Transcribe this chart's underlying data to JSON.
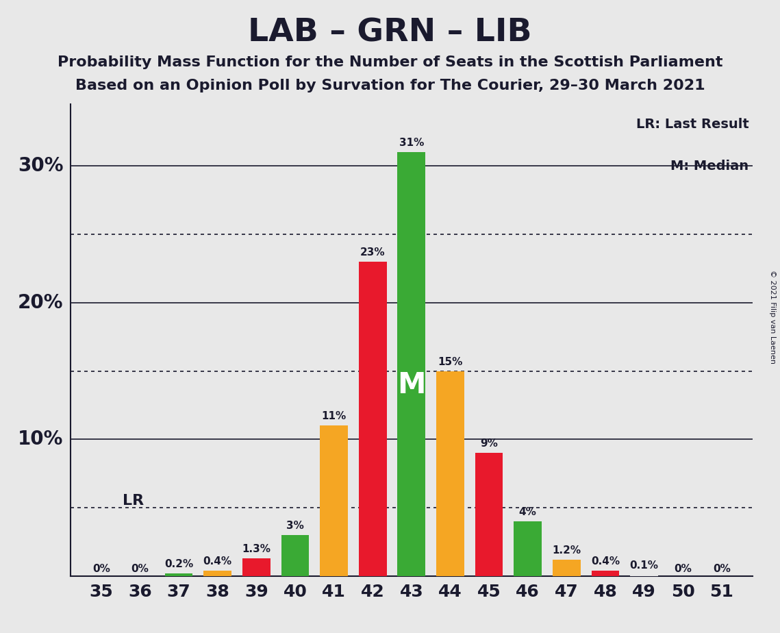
{
  "title": "LAB – GRN – LIB",
  "subtitle1": "Probability Mass Function for the Number of Seats in the Scottish Parliament",
  "subtitle2": "Based on an Opinion Poll by Survation for The Courier, 29–30 March 2021",
  "copyright": "© 2021 Filip van Laenen",
  "seats": [
    35,
    36,
    37,
    38,
    39,
    40,
    41,
    42,
    43,
    44,
    45,
    46,
    47,
    48,
    49,
    50,
    51
  ],
  "values": [
    0.0,
    0.0,
    0.2,
    0.4,
    1.3,
    3.0,
    11.0,
    23.0,
    31.0,
    15.0,
    9.0,
    4.0,
    1.2,
    0.4,
    0.1,
    0.0,
    0.0
  ],
  "labels": [
    "0%",
    "0%",
    "0.2%",
    "0.4%",
    "1.3%",
    "3%",
    "11%",
    "23%",
    "31%",
    "15%",
    "9%",
    "4%",
    "1.2%",
    "0.4%",
    "0.1%",
    "0%",
    "0%"
  ],
  "colors_map": {
    "35": "#e8e8e8",
    "36": "#e8e8e8",
    "37": "#3aaa35",
    "38": "#f5a623",
    "39": "#e8192c",
    "40": "#3aaa35",
    "41": "#f5a623",
    "42": "#e8192c",
    "43": "#3aaa35",
    "44": "#f5a623",
    "45": "#e8192c",
    "46": "#3aaa35",
    "47": "#f5a623",
    "48": "#e8192c",
    "49": "#e8e8e8",
    "50": "#e8e8e8",
    "51": "#e8e8e8"
  },
  "median_seat": 43,
  "lr_value": 5.0,
  "background_color": "#e8e8e8",
  "solid_lines": [
    10,
    20,
    30
  ],
  "dotted_lines": [
    5,
    15,
    25
  ],
  "legend_text1": "LR: Last Result",
  "legend_text2": "M: Median",
  "text_color": "#1a1a2e"
}
